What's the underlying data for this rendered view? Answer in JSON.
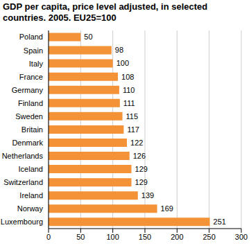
{
  "chart_data": {
    "type": "bar",
    "title": "GDP per capita, price level adjusted, in selected countries. 2005. EU25=100",
    "orientation": "horizontal",
    "categories": [
      "Poland",
      "Spain",
      "Italy",
      "France",
      "Germany",
      "Finland",
      "Sweden",
      "Britain",
      "Denmark",
      "Netherlands",
      "Iceland",
      "Switzerland",
      "Ireland",
      "Norway",
      "Luxembourg"
    ],
    "values": [
      50,
      98,
      100,
      108,
      110,
      111,
      115,
      117,
      122,
      126,
      129,
      129,
      139,
      169,
      251
    ],
    "color": "#f39237",
    "xlim": [
      0,
      300
    ],
    "xticks": [
      0,
      50,
      100,
      150,
      200,
      250,
      300
    ],
    "grid": true,
    "data_labels": true
  }
}
